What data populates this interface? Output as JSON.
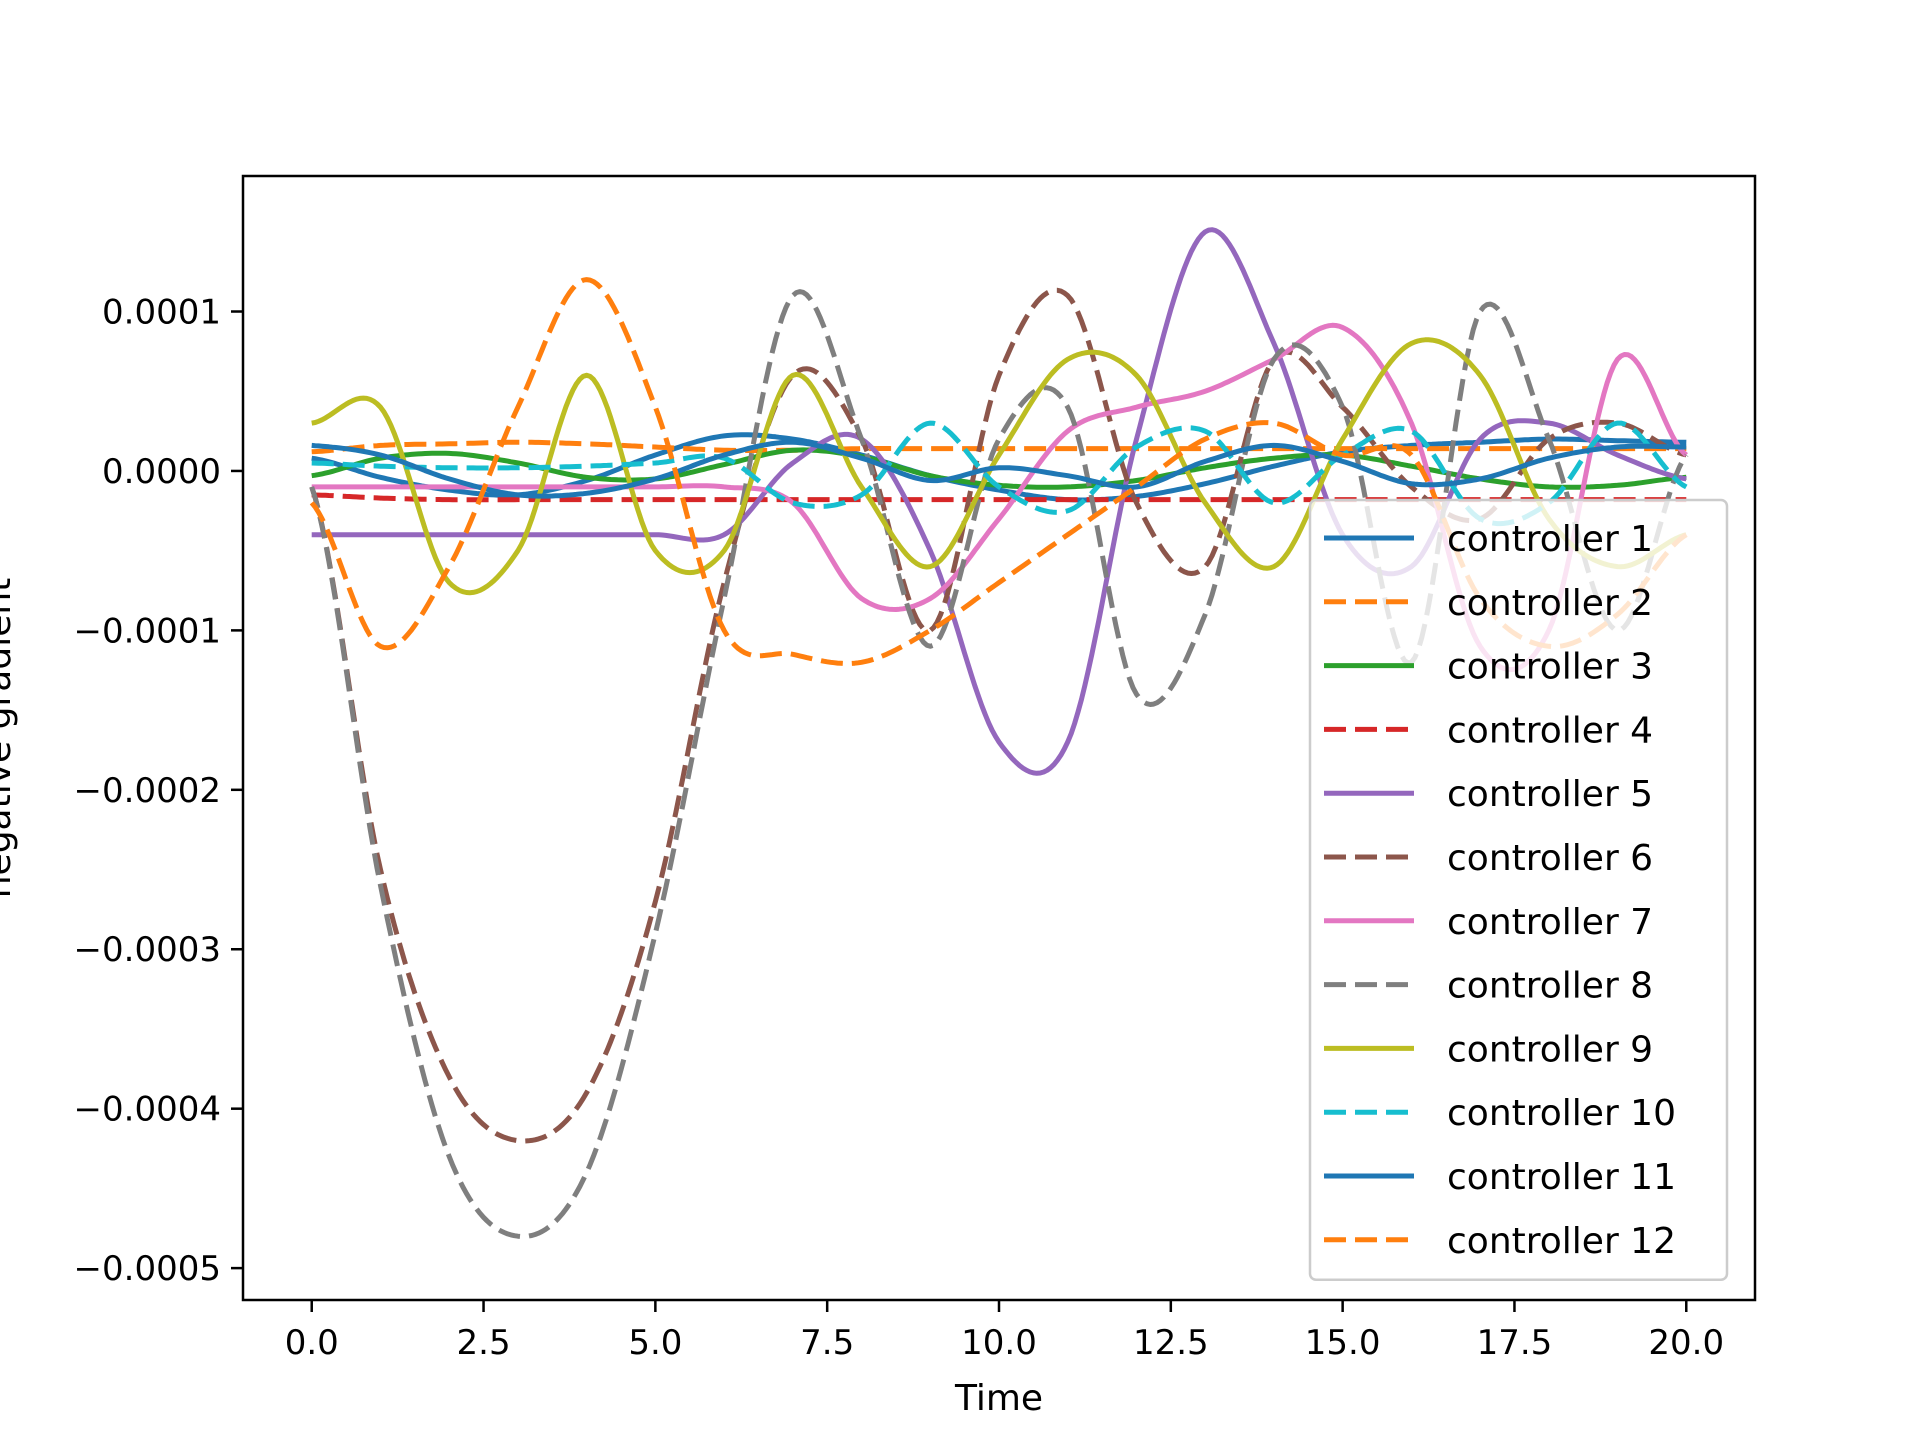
{
  "chart_data": {
    "type": "line",
    "xlabel": "Time",
    "ylabel": "negative gradient",
    "xlim": [
      -1.0,
      21.0
    ],
    "ylim": [
      -0.00052,
      0.000185
    ],
    "xticks": [
      0.0,
      2.5,
      5.0,
      7.5,
      10.0,
      12.5,
      15.0,
      17.5,
      20.0
    ],
    "xtick_labels": [
      "0.0",
      "2.5",
      "5.0",
      "7.5",
      "10.0",
      "12.5",
      "15.0",
      "17.5",
      "20.0"
    ],
    "yticks": [
      0.0001,
      0.0,
      -0.0001,
      -0.0002,
      -0.0003,
      -0.0004,
      -0.0005
    ],
    "ytick_labels": [
      "0.0001",
      "0.0000",
      "−0.0001",
      "−0.0002",
      "−0.0003",
      "−0.0004",
      "−0.0005"
    ],
    "grid": false,
    "legend_position": "lower-right",
    "x": [
      0,
      1,
      2,
      3,
      4,
      5,
      6,
      7,
      8,
      9,
      10,
      11,
      12,
      13,
      14,
      15,
      16,
      17,
      18,
      19,
      20
    ],
    "series": [
      {
        "name": "controller 1",
        "color": "#1f77b4",
        "dash": "solid",
        "values": [
          8e-06,
          -4e-06,
          -1.2e-05,
          -1.5e-05,
          -6e-06,
          1e-05,
          2.2e-05,
          2e-05,
          1e-05,
          -3e-06,
          -1.2e-05,
          -1.8e-05,
          -1.6e-05,
          -8e-06,
          3e-06,
          1.2e-05,
          1.6e-05,
          1.8e-05,
          2e-05,
          1.9e-05,
          1.8e-05
        ]
      },
      {
        "name": "controller 2",
        "color": "#ff7f0e",
        "dash": "dashed",
        "values": [
          1.2e-05,
          1.6e-05,
          1.7e-05,
          1.8e-05,
          1.7e-05,
          1.5e-05,
          1.3e-05,
          1.3e-05,
          1.4e-05,
          1.4e-05,
          1.4e-05,
          1.4e-05,
          1.4e-05,
          1.4e-05,
          1.4e-05,
          1.4e-05,
          1.4e-05,
          1.4e-05,
          1.4e-05,
          1.4e-05,
          1.4e-05
        ]
      },
      {
        "name": "controller 3",
        "color": "#2ca02c",
        "dash": "solid",
        "values": [
          -3e-06,
          8e-06,
          1.1e-05,
          5e-06,
          -4e-06,
          -5e-06,
          4e-06,
          1.3e-05,
          9e-06,
          -3e-06,
          -9e-06,
          -1e-05,
          -6e-06,
          2e-06,
          8e-06,
          1e-05,
          3e-06,
          -5e-06,
          -1e-05,
          -9e-06,
          -4e-06
        ]
      },
      {
        "name": "controller 4",
        "color": "#d62728",
        "dash": "dashed",
        "values": [
          -1.5e-05,
          -1.7e-05,
          -1.8e-05,
          -1.8e-05,
          -1.8e-05,
          -1.8e-05,
          -1.8e-05,
          -1.8e-05,
          -1.8e-05,
          -1.8e-05,
          -1.8e-05,
          -1.8e-05,
          -1.8e-05,
          -1.8e-05,
          -1.8e-05,
          -1.8e-05,
          -1.8e-05,
          -1.8e-05,
          -1.8e-05,
          -1.8e-05,
          -1.8e-05
        ]
      },
      {
        "name": "controller 5",
        "color": "#9467bd",
        "dash": "solid",
        "values": [
          -4e-05,
          -4e-05,
          -4e-05,
          -4e-05,
          -4e-05,
          -4e-05,
          -4e-05,
          5e-06,
          2e-05,
          -5e-05,
          -0.00017,
          -0.00017,
          2e-05,
          0.00015,
          8e-05,
          -4e-05,
          -6e-05,
          2e-05,
          3e-05,
          1e-05,
          -5e-06
        ]
      },
      {
        "name": "controller 6",
        "color": "#8c564b",
        "dash": "dashed",
        "values": [
          -1e-05,
          -0.00025,
          -0.00038,
          -0.00042,
          -0.00039,
          -0.00027,
          -7e-05,
          6e-05,
          2e-05,
          -0.0001,
          6e-05,
          0.00011,
          -2e-05,
          -6e-05,
          7e-05,
          4e-05,
          -1e-05,
          -3e-05,
          2e-05,
          3e-05,
          1e-05
        ]
      },
      {
        "name": "controller 7",
        "color": "#e377c2",
        "dash": "solid",
        "values": [
          -1e-05,
          -1e-05,
          -1e-05,
          -1e-05,
          -1e-05,
          -1e-05,
          -1e-05,
          -2e-05,
          -8e-05,
          -8e-05,
          -3e-05,
          2.5e-05,
          4e-05,
          5e-05,
          7e-05,
          9e-05,
          3e-05,
          -0.00011,
          -0.0001,
          7e-05,
          1e-05
        ]
      },
      {
        "name": "controller 8",
        "color": "#7f7f7f",
        "dash": "dashed",
        "values": [
          -1e-05,
          -0.00026,
          -0.00043,
          -0.00048,
          -0.00044,
          -0.00029,
          -8e-05,
          0.00011,
          2e-05,
          -0.00011,
          2e-05,
          4e-05,
          -0.00014,
          -9e-05,
          7e-05,
          4e-05,
          -0.00012,
          0.0001,
          2e-05,
          -0.0001,
          1e-05
        ]
      },
      {
        "name": "controller 9",
        "color": "#bcbd22",
        "dash": "solid",
        "values": [
          3e-05,
          4e-05,
          -7e-05,
          -5e-05,
          6e-05,
          -5e-05,
          -5e-05,
          6e-05,
          -1e-05,
          -6e-05,
          1e-05,
          7e-05,
          6e-05,
          -2e-05,
          -6e-05,
          2e-05,
          8e-05,
          6e-05,
          -3e-05,
          -6e-05,
          -4e-05
        ]
      },
      {
        "name": "controller 10",
        "color": "#17becf",
        "dash": "dashed",
        "values": [
          5e-06,
          3e-06,
          2e-06,
          2e-06,
          3e-06,
          5e-06,
          8e-06,
          -2e-05,
          -1.5e-05,
          3e-05,
          -1e-05,
          -2.5e-05,
          1.5e-05,
          2.5e-05,
          -2e-05,
          1e-05,
          2.5e-05,
          -3e-05,
          -2e-05,
          3e-05,
          -1e-05
        ]
      },
      {
        "name": "controller 11",
        "color": "#1f77b4",
        "dash": "solid",
        "values": [
          1.6e-05,
          1e-05,
          -5e-06,
          -1.5e-05,
          -1.4e-05,
          -5e-06,
          1e-05,
          1.8e-05,
          8e-06,
          -6e-06,
          2e-06,
          -3e-06,
          -1e-05,
          6e-06,
          1.6e-05,
          6e-06,
          -8e-06,
          -5e-06,
          8e-06,
          1.5e-05,
          1.5e-05
        ]
      },
      {
        "name": "controller 12",
        "color": "#ff7f0e",
        "dash": "dashed",
        "values": [
          -2e-05,
          -0.00011,
          -6e-05,
          4e-05,
          0.00012,
          4e-05,
          -0.0001,
          -0.000115,
          -0.00012,
          -0.0001,
          -7e-05,
          -4e-05,
          -1e-05,
          2e-05,
          3e-05,
          1e-05,
          1e-05,
          -8e-05,
          -0.00011,
          -9e-05,
          -4e-05
        ]
      }
    ]
  }
}
